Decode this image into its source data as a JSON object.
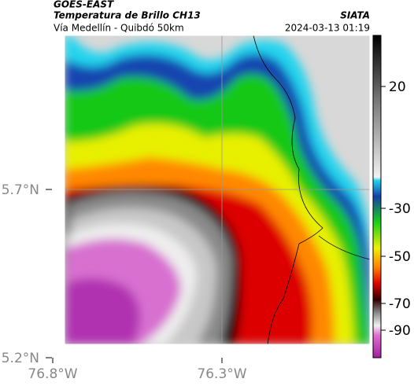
{
  "header": {
    "title": "GOES-EAST",
    "subtitle": "Temperatura de Brillo CH13",
    "route": "Vía Medellín - Quibdó 50km",
    "source": "SIATA",
    "timestamp": "2024-03-13 01:19"
  },
  "map": {
    "lat_labels": [
      "5.7°N",
      "5.2°N"
    ],
    "lon_labels": [
      "76.8°W",
      "76.3°W"
    ]
  },
  "colorbar": {
    "ticks": [
      20,
      -30,
      -50,
      -70,
      -90
    ]
  }
}
